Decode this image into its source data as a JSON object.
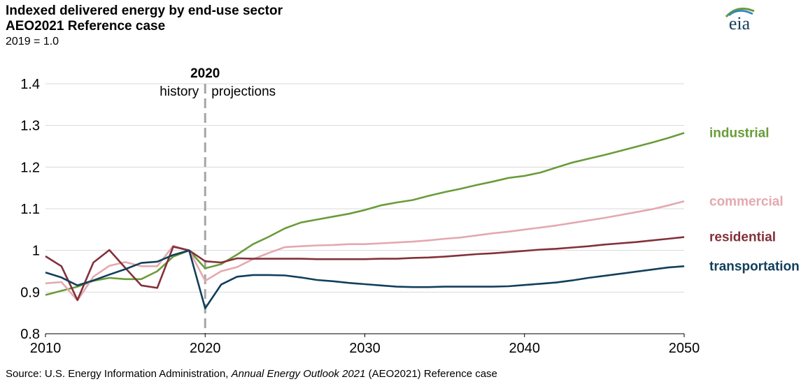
{
  "header": {
    "title_line1": "Indexed delivered energy by end-use sector",
    "title_line2": "AEO2021 Reference case",
    "units": "2019 = 1.0",
    "logo_text": "eia"
  },
  "source": {
    "prefix": "Source: U.S. Energy Information Administration, ",
    "italic": "Annual Energy Outlook 2021",
    "suffix": " (AEO2021) Reference case"
  },
  "chart_data": {
    "type": "line",
    "title": "Indexed delivered energy by end-use sector",
    "subtitle": "AEO2021 Reference case",
    "ylabel": "2019 = 1.0",
    "xlim": [
      2010,
      2050
    ],
    "ylim": [
      0.8,
      1.4
    ],
    "xticks": [
      2010,
      2020,
      2030,
      2040,
      2050
    ],
    "yticks": [
      0.8,
      0.9,
      1,
      1.1,
      1.2,
      1.3,
      1.4
    ],
    "ytick_labels": [
      "0.8",
      "0.9",
      "1",
      "1.1",
      "1.2",
      "1.3",
      "1.4"
    ],
    "grid": "horizontal",
    "legend": "inline labels at right end of lines",
    "divider": {
      "x": 2020,
      "label": "2020",
      "left_label": "history",
      "right_label": "projections"
    },
    "x": [
      2010,
      2011,
      2012,
      2013,
      2014,
      2015,
      2016,
      2017,
      2018,
      2019,
      2020,
      2021,
      2022,
      2023,
      2024,
      2025,
      2026,
      2027,
      2028,
      2029,
      2030,
      2031,
      2032,
      2033,
      2034,
      2035,
      2036,
      2037,
      2038,
      2039,
      2040,
      2041,
      2042,
      2043,
      2044,
      2045,
      2046,
      2047,
      2048,
      2049,
      2050
    ],
    "series": [
      {
        "name": "industrial",
        "color": "#6a9c3a",
        "values": [
          0.893,
          0.903,
          0.913,
          0.927,
          0.934,
          0.931,
          0.931,
          0.95,
          0.985,
          1.0,
          0.957,
          0.967,
          0.99,
          1.015,
          1.033,
          1.053,
          1.067,
          1.074,
          1.081,
          1.088,
          1.097,
          1.108,
          1.115,
          1.121,
          1.131,
          1.14,
          1.148,
          1.157,
          1.165,
          1.174,
          1.179,
          1.187,
          1.199,
          1.211,
          1.22,
          1.229,
          1.239,
          1.249,
          1.259,
          1.27,
          1.282
        ]
      },
      {
        "name": "commercial",
        "color": "#e3a9af",
        "values": [
          0.921,
          0.924,
          0.88,
          0.937,
          0.963,
          0.972,
          0.962,
          0.962,
          1.011,
          1.0,
          0.927,
          0.95,
          0.96,
          0.979,
          0.994,
          1.008,
          1.01,
          1.012,
          1.013,
          1.015,
          1.015,
          1.017,
          1.019,
          1.021,
          1.024,
          1.028,
          1.031,
          1.036,
          1.041,
          1.045,
          1.05,
          1.055,
          1.06,
          1.066,
          1.072,
          1.078,
          1.085,
          1.092,
          1.099,
          1.108,
          1.118
        ]
      },
      {
        "name": "residential",
        "color": "#84303a",
        "values": [
          0.986,
          0.962,
          0.881,
          0.971,
          1.001,
          0.958,
          0.916,
          0.91,
          1.009,
          1.0,
          0.974,
          0.971,
          0.981,
          0.98,
          0.98,
          0.98,
          0.98,
          0.979,
          0.979,
          0.979,
          0.979,
          0.98,
          0.98,
          0.982,
          0.983,
          0.985,
          0.988,
          0.991,
          0.993,
          0.996,
          0.999,
          1.002,
          1.004,
          1.007,
          1.01,
          1.014,
          1.017,
          1.02,
          1.024,
          1.028,
          1.032
        ]
      },
      {
        "name": "transportation",
        "color": "#123f5c",
        "values": [
          0.947,
          0.935,
          0.916,
          0.928,
          0.942,
          0.955,
          0.97,
          0.973,
          0.989,
          1.0,
          0.861,
          0.918,
          0.937,
          0.941,
          0.941,
          0.94,
          0.935,
          0.929,
          0.926,
          0.922,
          0.919,
          0.916,
          0.913,
          0.912,
          0.912,
          0.913,
          0.913,
          0.913,
          0.913,
          0.914,
          0.917,
          0.92,
          0.923,
          0.928,
          0.934,
          0.939,
          0.944,
          0.949,
          0.954,
          0.959,
          0.962
        ]
      }
    ]
  }
}
